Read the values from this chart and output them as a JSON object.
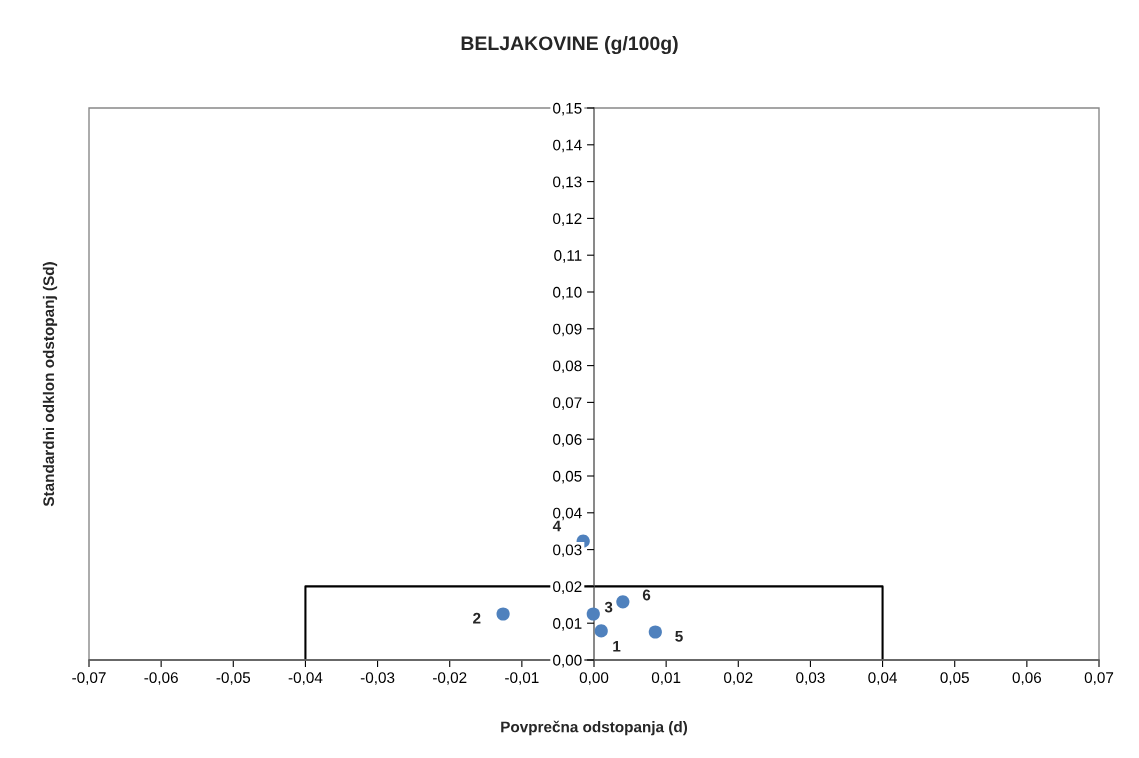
{
  "chart_data": {
    "type": "scatter",
    "title": "BELJAKOVINE (g/100g)",
    "xlabel": "Povprečna odstopanja (d)",
    "ylabel": "Standardni odklon odstopanj (Sd)",
    "series": [
      {
        "type": "scatter",
        "color": "#4f81bd",
        "marker": "circle",
        "x": [
          0.001,
          -0.0126,
          -0.0001,
          -0.0015,
          0.0085,
          0.004
        ],
        "values": [
          0.0079,
          0.0125,
          0.0125,
          0.0323,
          0.0076,
          0.0158
        ]
      },
      {
        "type": "line",
        "color": "#000000",
        "x": [
          -0.04,
          -0.04,
          0.04,
          0.04
        ],
        "values": [
          0,
          0.02,
          0.02,
          0
        ]
      }
    ],
    "annotations": [
      {
        "text": "1",
        "x": 0.001,
        "y": 0.0079
      },
      {
        "text": "2",
        "x": -0.0126,
        "y": 0.0125
      },
      {
        "text": "3",
        "x": -0.0001,
        "y": 0.0125
      },
      {
        "text": "4",
        "x": -0.0015,
        "y": 0.0323
      },
      {
        "text": "5",
        "x": 0.0085,
        "y": 0.0076
      },
      {
        "text": "6",
        "x": 0.004,
        "y": 0.0158
      }
    ],
    "xlim": [
      -0.07,
      0.07
    ],
    "ylim": [
      0,
      0.15
    ],
    "xticks": [
      {
        "value": -0.07,
        "label": "-0,07"
      },
      {
        "value": -0.06,
        "label": "-0,06"
      },
      {
        "value": -0.05,
        "label": "-0,05"
      },
      {
        "value": -0.04,
        "label": "-0,04"
      },
      {
        "value": -0.03,
        "label": "-0,03"
      },
      {
        "value": -0.02,
        "label": "-0,02"
      },
      {
        "value": -0.01,
        "label": "-0,01"
      },
      {
        "value": 0,
        "label": "0,00"
      },
      {
        "value": 0.01,
        "label": "0,01"
      },
      {
        "value": 0.02,
        "label": "0,02"
      },
      {
        "value": 0.03,
        "label": "0,03"
      },
      {
        "value": 0.04,
        "label": "0,04"
      },
      {
        "value": 0.05,
        "label": "0,05"
      },
      {
        "value": 0.06,
        "label": "0,06"
      },
      {
        "value": 0.07,
        "label": "0,07"
      }
    ],
    "yticks": [
      {
        "value": 0,
        "label": "0,00"
      },
      {
        "value": 0.01,
        "label": "0,01"
      },
      {
        "value": 0.02,
        "label": "0,02"
      },
      {
        "value": 0.03,
        "label": "0,03"
      },
      {
        "value": 0.04,
        "label": "0,04"
      },
      {
        "value": 0.05,
        "label": "0,05"
      },
      {
        "value": 0.06,
        "label": "0,06"
      },
      {
        "value": 0.07,
        "label": "0,07"
      },
      {
        "value": 0.08,
        "label": "0,08"
      },
      {
        "value": 0.09,
        "label": "0,09"
      },
      {
        "value": 0.1,
        "label": "0,10"
      },
      {
        "value": 0.11,
        "label": "0,11"
      },
      {
        "value": 0.12,
        "label": "0,12"
      },
      {
        "value": 0.13,
        "label": "0,13"
      },
      {
        "value": 0.14,
        "label": "0,14"
      },
      {
        "value": 0.15,
        "label": "0,15"
      }
    ],
    "grid": false,
    "legend": false
  }
}
